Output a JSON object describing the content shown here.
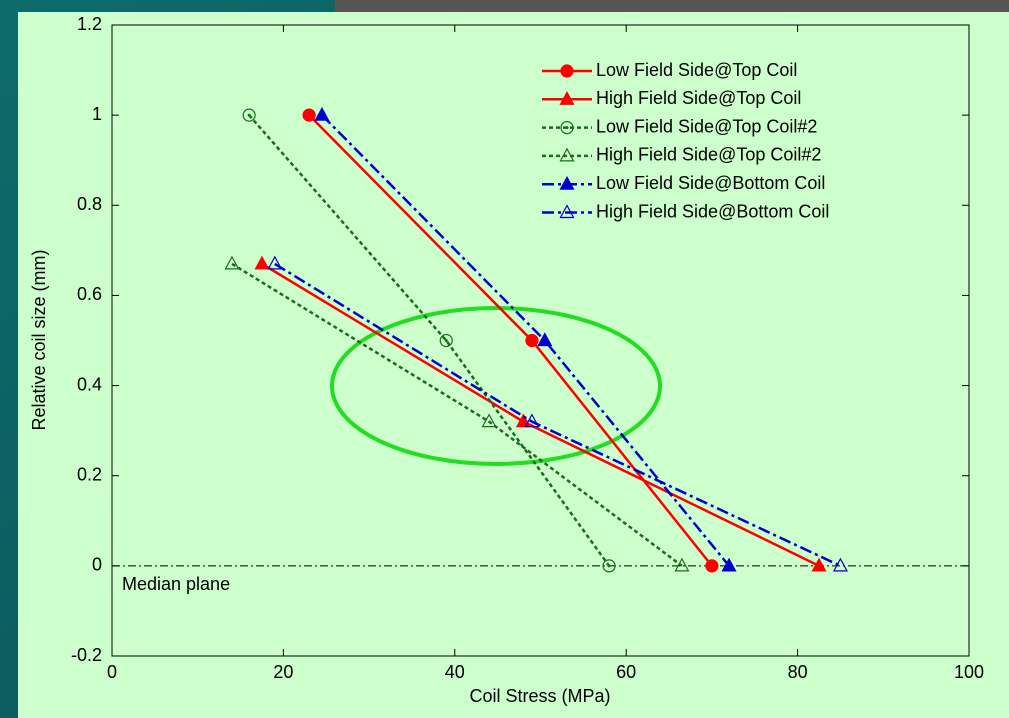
{
  "chart_data": {
    "type": "line",
    "x_label": "Coil Stress (MPa)",
    "y_label": "Relative coil size (mm)",
    "annotation": "Median plane",
    "xlim": [
      0,
      100
    ],
    "xticks": [
      0,
      20,
      40,
      60,
      80,
      100
    ],
    "ylim": [
      -0.2,
      1.2
    ],
    "yticks": [
      -0.2,
      0,
      0.2,
      0.4,
      0.6,
      0.8,
      1,
      1.2
    ],
    "legend": "upper right",
    "series": [
      {
        "name": "Low Field Side@Top Coil",
        "color": "#ff0000",
        "line_style": "solid",
        "marker": "circle",
        "marker_fill": true,
        "x": [
          23,
          49,
          70
        ],
        "values": [
          1,
          0.5,
          0
        ]
      },
      {
        "name": "High Field Side@Top Coil",
        "color": "#ff0000",
        "line_style": "solid",
        "marker": "triangle",
        "marker_fill": true,
        "x": [
          17.5,
          48,
          82.5
        ],
        "values": [
          0.67,
          0.32,
          0
        ]
      },
      {
        "name": "Low Field Side@Top Coil#2",
        "color": "#1a6b1a",
        "line_style": "dotted",
        "marker": "circle",
        "marker_fill": false,
        "x": [
          16,
          39,
          58
        ],
        "values": [
          1,
          0.5,
          0
        ]
      },
      {
        "name": "High Field Side@Top Coil#2",
        "color": "#1a6b1a",
        "line_style": "dotted",
        "marker": "triangle",
        "marker_fill": false,
        "x": [
          14,
          44,
          66.5
        ],
        "values": [
          0.67,
          0.32,
          0
        ]
      },
      {
        "name": "Low Field Side@Bottom Coil",
        "color": "#0000cc",
        "line_style": "dashdot",
        "marker": "triangle",
        "marker_fill": true,
        "x": [
          24.5,
          50.5,
          72
        ],
        "values": [
          1,
          0.5,
          0
        ]
      },
      {
        "name": "High Field Side@Bottom Coil",
        "color": "#0000cc",
        "line_style": "dashdot",
        "marker": "triangle",
        "marker_fill": false,
        "x": [
          19,
          49,
          85
        ],
        "values": [
          0.67,
          0.32,
          0
        ]
      }
    ]
  }
}
